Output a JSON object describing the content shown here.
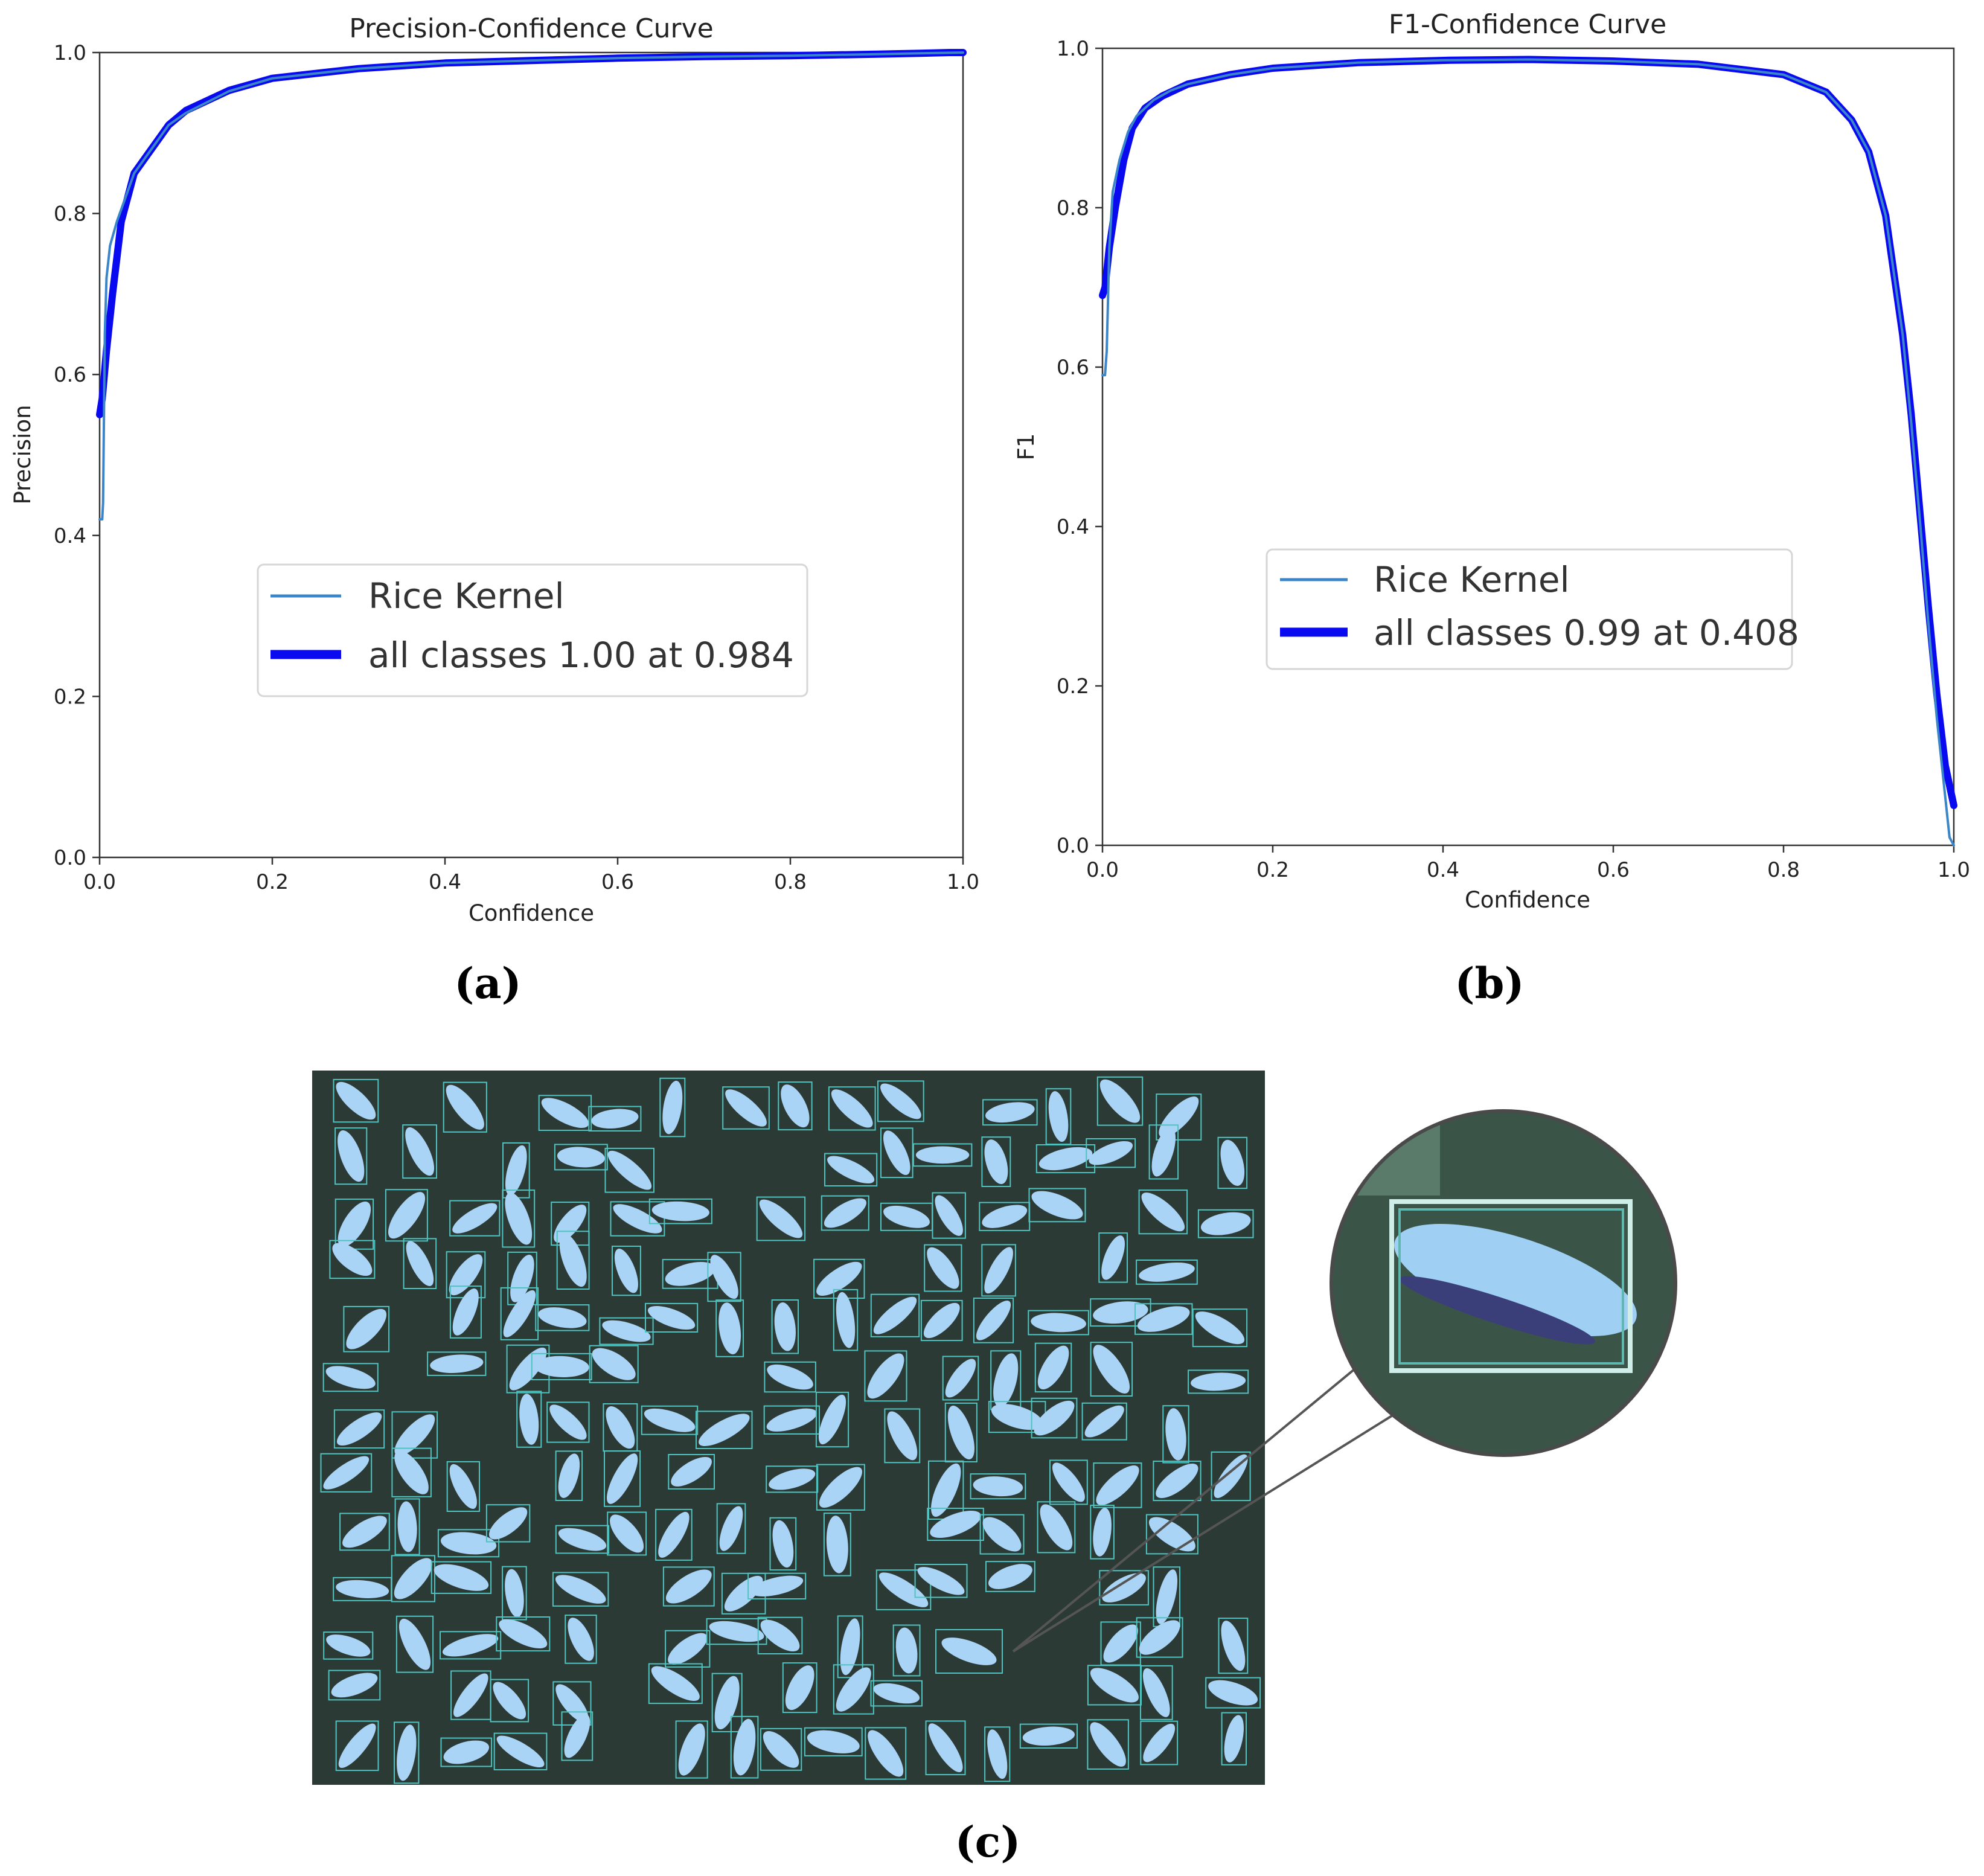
{
  "chart_data": [
    {
      "id": "a",
      "type": "line",
      "title": "Precision-Confidence Curve",
      "xlabel": "Confidence",
      "ylabel": "Precision",
      "xlim": [
        0,
        1
      ],
      "ylim": [
        0,
        1
      ],
      "xticks": [
        "0.0",
        "0.2",
        "0.4",
        "0.6",
        "0.8",
        "1.0"
      ],
      "yticks": [
        "0.0",
        "0.2",
        "0.4",
        "0.6",
        "0.8",
        "1.0"
      ],
      "legend_position": "center",
      "series": [
        {
          "name": "Rice Kernel",
          "color": "#3a86c8",
          "x": [
            0.0,
            0.003,
            0.004,
            0.006,
            0.008,
            0.012,
            0.02,
            0.03,
            0.04,
            0.06,
            0.08,
            0.1,
            0.15,
            0.2,
            0.3,
            0.4,
            0.5,
            0.6,
            0.7,
            0.8,
            0.9,
            0.95,
            1.0
          ],
          "y": [
            0.42,
            0.42,
            0.44,
            0.65,
            0.72,
            0.76,
            0.79,
            0.82,
            0.85,
            0.88,
            0.91,
            0.925,
            0.952,
            0.968,
            0.98,
            0.987,
            0.99,
            0.993,
            0.995,
            0.996,
            0.998,
            0.999,
            1.0
          ]
        },
        {
          "name": "all classes 1.00 at 0.984",
          "color": "#0a0af0",
          "x": [
            0.0,
            0.003,
            0.008,
            0.015,
            0.025,
            0.04,
            0.06,
            0.08,
            0.1,
            0.15,
            0.2,
            0.3,
            0.4,
            0.5,
            0.6,
            0.7,
            0.8,
            0.9,
            0.95,
            0.984,
            1.0
          ],
          "y": [
            0.55,
            0.57,
            0.63,
            0.7,
            0.79,
            0.85,
            0.88,
            0.91,
            0.928,
            0.953,
            0.968,
            0.98,
            0.987,
            0.99,
            0.993,
            0.995,
            0.996,
            0.998,
            0.999,
            1.0,
            1.0
          ]
        }
      ]
    },
    {
      "id": "b",
      "type": "line",
      "title": "F1-Confidence Curve",
      "xlabel": "Confidence",
      "ylabel": "F1",
      "xlim": [
        0,
        1
      ],
      "ylim": [
        0,
        1
      ],
      "xticks": [
        "0.0",
        "0.2",
        "0.4",
        "0.6",
        "0.8",
        "1.0"
      ],
      "yticks": [
        "0.0",
        "0.2",
        "0.4",
        "0.6",
        "0.8",
        "1.0"
      ],
      "legend_position": "center",
      "series": [
        {
          "name": "Rice Kernel",
          "color": "#3a86c8",
          "x": [
            0.0,
            0.003,
            0.005,
            0.008,
            0.012,
            0.02,
            0.03,
            0.04,
            0.06,
            0.08,
            0.1,
            0.15,
            0.2,
            0.3,
            0.4,
            0.5,
            0.6,
            0.7,
            0.8,
            0.85,
            0.88,
            0.9,
            0.92,
            0.94,
            0.95,
            0.96,
            0.97,
            0.98,
            0.99,
            0.995,
            1.0
          ],
          "y": [
            0.59,
            0.59,
            0.62,
            0.75,
            0.82,
            0.86,
            0.895,
            0.915,
            0.935,
            0.947,
            0.955,
            0.967,
            0.975,
            0.982,
            0.985,
            0.986,
            0.984,
            0.98,
            0.967,
            0.945,
            0.91,
            0.87,
            0.79,
            0.64,
            0.53,
            0.41,
            0.28,
            0.16,
            0.06,
            0.01,
            0.0
          ]
        },
        {
          "name": "all classes 0.99 at 0.408",
          "color": "#0a0af0",
          "x": [
            0.0,
            0.003,
            0.008,
            0.015,
            0.025,
            0.035,
            0.05,
            0.07,
            0.1,
            0.15,
            0.2,
            0.3,
            0.408,
            0.5,
            0.6,
            0.7,
            0.8,
            0.85,
            0.88,
            0.9,
            0.92,
            0.94,
            0.95,
            0.96,
            0.97,
            0.98,
            0.99,
            1.0
          ],
          "y": [
            0.69,
            0.7,
            0.75,
            0.8,
            0.86,
            0.9,
            0.925,
            0.94,
            0.955,
            0.967,
            0.975,
            0.982,
            0.985,
            0.986,
            0.984,
            0.98,
            0.967,
            0.945,
            0.91,
            0.87,
            0.79,
            0.64,
            0.54,
            0.42,
            0.3,
            0.19,
            0.1,
            0.05
          ]
        }
      ]
    }
  ],
  "captions": {
    "a": "(a)",
    "b": "(b)",
    "c": "(c)"
  },
  "photo": {
    "background_color": "#2c3a36",
    "kernel_color": "#a9d4f5",
    "box_color": "#4fc3c0"
  }
}
